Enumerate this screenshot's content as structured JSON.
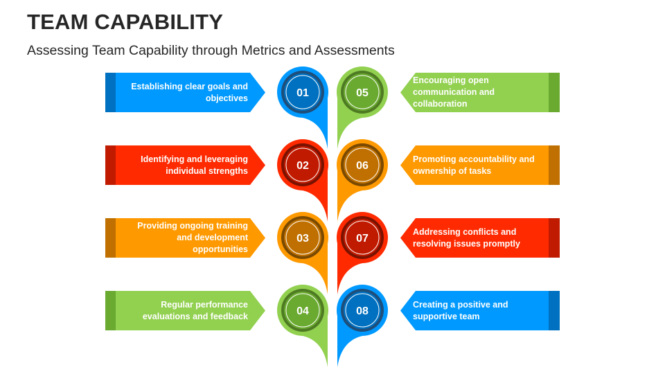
{
  "header": {
    "title": "TEAM CAPABILITY",
    "subtitle": "Assessing Team Capability through Metrics and Assessments"
  },
  "colors": {
    "blue": {
      "main": "#0099FF",
      "dark": "#0070C0",
      "ring": "#1F4E79"
    },
    "red": {
      "main": "#FF2A00",
      "dark": "#C01A00",
      "ring": "#7A1200"
    },
    "orange": {
      "main": "#FF9900",
      "dark": "#C07000",
      "ring": "#7A4A00"
    },
    "green": {
      "main": "#92D050",
      "dark": "#6AAA30",
      "ring": "#4E7A23"
    }
  },
  "items": [
    {
      "number": "01",
      "text": "Establishing clear goals and objectives",
      "color": "blue",
      "side": "left"
    },
    {
      "number": "02",
      "text": "Identifying and leveraging individual strengths",
      "color": "red",
      "side": "left"
    },
    {
      "number": "03",
      "text": "Providing ongoing training and development opportunities",
      "color": "orange",
      "side": "left"
    },
    {
      "number": "04",
      "text": "Regular performance evaluations and feedback",
      "color": "green",
      "side": "left"
    },
    {
      "number": "05",
      "text": "Encouraging open communication and collaboration",
      "color": "green",
      "side": "right"
    },
    {
      "number": "06",
      "text": "Promoting accountability and ownership of tasks",
      "color": "orange",
      "side": "right"
    },
    {
      "number": "07",
      "text": "Addressing conflicts and resolving issues promptly",
      "color": "red",
      "side": "right"
    },
    {
      "number": "08",
      "text": "Creating a positive and supportive team",
      "color": "blue",
      "side": "right"
    }
  ]
}
